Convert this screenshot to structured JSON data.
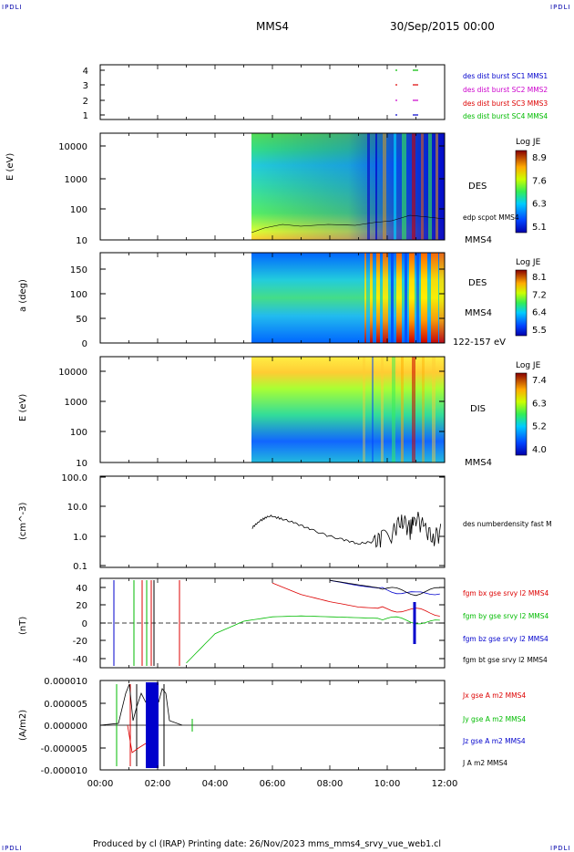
{
  "header": {
    "corner_left": "IPDLI",
    "corner_right": "IPDLI",
    "title": "MMS4",
    "date": "30/Sep/2015 00:00"
  },
  "footer": {
    "text": "Produced by cl (IRAP)   Printing date: 26/Nov/2023   mms_mms4_srvy_vue_web1.cl",
    "corner_left": "IPDLI",
    "corner_right": "IPDLI"
  },
  "colors": {
    "mms1": "#0000cc",
    "mms2": "#cc00cc",
    "mms3": "#dd0000",
    "mms4": "#00bb00",
    "bx": "#dd0000",
    "by": "#00bb00",
    "bz": "#0000cc",
    "bt": "#000000"
  },
  "chart_data": [
    {
      "type": "scatter",
      "panel": "availability",
      "y_ticks": [
        "4",
        "3",
        "2",
        "1"
      ],
      "legend": [
        "des dist burst SC1 MMS1",
        "des dist burst SC2 MMS2",
        "des dist burst SC3 MMS3",
        "des dist burst SC4 MMS4"
      ],
      "x_range_hours": [
        0,
        12
      ]
    },
    {
      "type": "heatmap",
      "panel": "des-energy",
      "ylabel": "E (eV)",
      "y_ticks": [
        "10000",
        "1000",
        "100",
        "10"
      ],
      "label": "DES",
      "sublabel": "edp scpot MMS4",
      "label2": "MMS4",
      "colorbar_title": "Log JE",
      "colorbar_ticks": [
        "8.9",
        "7.6",
        "6.3",
        "5.1"
      ],
      "data_start_hour": 5.3
    },
    {
      "type": "heatmap",
      "panel": "des-pitch",
      "ylabel": "a (deg)",
      "y_ticks": [
        "150",
        "100",
        "50",
        "0"
      ],
      "label": "DES",
      "label2": "MMS4",
      "sublabel": "122-157 eV",
      "colorbar_title": "Log JE",
      "colorbar_ticks": [
        "8.1",
        "7.2",
        "6.4",
        "5.5"
      ],
      "data_start_hour": 5.3
    },
    {
      "type": "heatmap",
      "panel": "dis-energy",
      "ylabel": "E (eV)",
      "y_ticks": [
        "10000",
        "1000",
        "100",
        "10"
      ],
      "label": "DIS",
      "label2": "MMS4",
      "colorbar_title": "Log JE",
      "colorbar_ticks": [
        "7.4",
        "6.3",
        "5.2",
        "4.0"
      ],
      "data_start_hour": 5.3
    },
    {
      "type": "line",
      "panel": "density",
      "ylabel": "(cm^-3)",
      "y_ticks": [
        "100.0",
        "10.0",
        "1.0",
        "0.1"
      ],
      "ylim": [
        0.1,
        100
      ],
      "legend": "des numberdensity fast M",
      "x": [
        5.3,
        5.6,
        5.9,
        6.3,
        6.8,
        7.3,
        7.9,
        8.5,
        9.0,
        9.5,
        9.8,
        10.2,
        10.5,
        10.8,
        11.0,
        11.3,
        11.6,
        11.9
      ],
      "values": [
        2.0,
        3.5,
        5.0,
        4.0,
        2.8,
        1.8,
        1.1,
        0.8,
        0.6,
        0.7,
        1.0,
        1.5,
        4.0,
        2.0,
        5.0,
        2.0,
        1.0,
        1.8
      ]
    },
    {
      "type": "line",
      "panel": "magnetic-field",
      "ylabel": "(nT)",
      "y_ticks": [
        "40",
        "20",
        "0",
        "-20",
        "-40"
      ],
      "ylim": [
        -50,
        50
      ],
      "legend": [
        "fgm bx gse srvy l2 MMS4",
        "fgm by gse srvy l2 MMS4",
        "fgm bz gse srvy l2 MMS4",
        "fgm bt gse srvy l2 MMS4"
      ],
      "x": [
        3.0,
        4.0,
        5.0,
        6.0,
        7.0,
        8.0,
        9.0,
        10.0,
        11.0,
        12.0
      ],
      "series": [
        {
          "values": [
            null,
            null,
            null,
            45,
            32,
            24,
            18,
            16,
            14,
            10
          ]
        },
        {
          "values": [
            -45,
            -12,
            2,
            7,
            8,
            7,
            6,
            5,
            2,
            0
          ]
        },
        {
          "values": [
            null,
            null,
            null,
            null,
            null,
            48,
            42,
            38,
            32,
            36
          ]
        },
        {
          "values": [
            null,
            null,
            null,
            null,
            null,
            48,
            43,
            38,
            34,
            38
          ]
        }
      ]
    },
    {
      "type": "line",
      "panel": "current",
      "ylabel": "(A/m2)",
      "y_ticks": [
        "0.000010",
        "0.000005",
        "0.000000",
        "-0.000005",
        "-0.000010"
      ],
      "ylim": [
        -1e-05,
        1e-05
      ],
      "legend": [
        "Jx gse A m2 MMS4",
        "Jy gse A m2 MMS4",
        "Jz gse A m2 MMS4",
        "J A m2 MMS4"
      ],
      "x_ticks": [
        "00:00",
        "02:00",
        "04:00",
        "06:00",
        "08:00",
        "10:00",
        "12:00"
      ]
    }
  ]
}
